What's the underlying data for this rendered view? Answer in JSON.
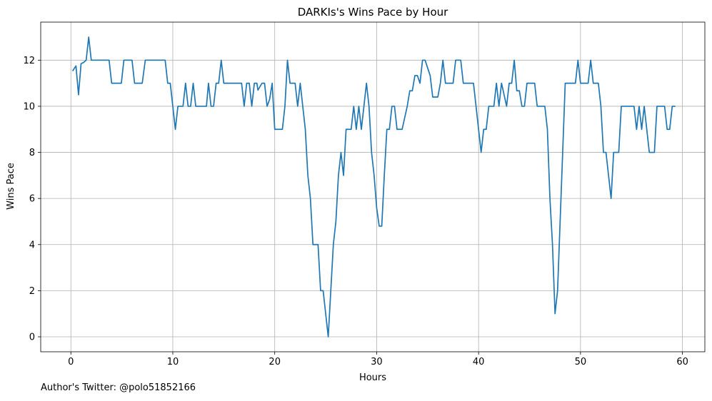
{
  "chart_data": {
    "type": "line",
    "title": "DARKIs's Wins Pace by Hour",
    "xlabel": "Hours",
    "ylabel": "Wins Pace",
    "xlim": [
      -2.96,
      62.2
    ],
    "ylim": [
      -0.65,
      13.65
    ],
    "xticks": [
      0,
      10,
      20,
      30,
      40,
      50,
      60
    ],
    "yticks": [
      0,
      2,
      4,
      6,
      8,
      10,
      12
    ],
    "grid": true,
    "series": [
      {
        "color": "#1f77b4",
        "points": [
          [
            0.2,
            11.55
          ],
          [
            0.5,
            11.75
          ],
          [
            0.75,
            10.5
          ],
          [
            1.0,
            11.85
          ],
          [
            1.25,
            11.9
          ],
          [
            1.5,
            12.0
          ],
          [
            1.75,
            13.0
          ],
          [
            2.0,
            12.0
          ],
          [
            2.5,
            12.0
          ],
          [
            3.0,
            12.0
          ],
          [
            3.5,
            12.0
          ],
          [
            3.75,
            12.0
          ],
          [
            4.0,
            11.0
          ],
          [
            4.5,
            11.0
          ],
          [
            4.95,
            11.0
          ],
          [
            5.2,
            12.0
          ],
          [
            5.75,
            12.0
          ],
          [
            6.0,
            12.0
          ],
          [
            6.25,
            11.0
          ],
          [
            7.0,
            11.0
          ],
          [
            7.3,
            12.0
          ],
          [
            8.0,
            12.0
          ],
          [
            8.5,
            12.0
          ],
          [
            9.25,
            12.0
          ],
          [
            9.5,
            11.0
          ],
          [
            9.75,
            11.0
          ],
          [
            10.25,
            9.0
          ],
          [
            10.5,
            10.0
          ],
          [
            11.0,
            10.0
          ],
          [
            11.25,
            11.0
          ],
          [
            11.5,
            10.0
          ],
          [
            11.75,
            10.0
          ],
          [
            12.0,
            11.0
          ],
          [
            12.25,
            10.0
          ],
          [
            12.75,
            10.0
          ],
          [
            13.0,
            10.0
          ],
          [
            13.3,
            10.0
          ],
          [
            13.5,
            11.0
          ],
          [
            13.75,
            10.0
          ],
          [
            14.0,
            10.0
          ],
          [
            14.25,
            11.0
          ],
          [
            14.5,
            11.0
          ],
          [
            14.75,
            12.0
          ],
          [
            15.0,
            11.0
          ],
          [
            16.0,
            11.0
          ],
          [
            16.75,
            11.0
          ],
          [
            17.0,
            10.0
          ],
          [
            17.25,
            11.0
          ],
          [
            17.5,
            11.0
          ],
          [
            17.75,
            10.0
          ],
          [
            18.0,
            11.0
          ],
          [
            18.25,
            11.0
          ],
          [
            18.35,
            10.7
          ],
          [
            18.75,
            11.0
          ],
          [
            19.0,
            11.0
          ],
          [
            19.25,
            10.0
          ],
          [
            19.5,
            10.3
          ],
          [
            19.75,
            11.0
          ],
          [
            20.0,
            9.0
          ],
          [
            20.25,
            9.0
          ],
          [
            20.75,
            9.0
          ],
          [
            21.0,
            10.0
          ],
          [
            21.25,
            12.0
          ],
          [
            21.5,
            11.0
          ],
          [
            22.0,
            11.0
          ],
          [
            22.25,
            10.0
          ],
          [
            22.5,
            11.0
          ],
          [
            23.0,
            9.0
          ],
          [
            23.25,
            7.0
          ],
          [
            23.5,
            6.0
          ],
          [
            23.75,
            4.0
          ],
          [
            24.0,
            4.0
          ],
          [
            24.25,
            4.0
          ],
          [
            24.5,
            2.0
          ],
          [
            24.75,
            2.0
          ],
          [
            25.25,
            0.0
          ],
          [
            25.5,
            2.0
          ],
          [
            25.75,
            4.0
          ],
          [
            26.0,
            5.0
          ],
          [
            26.25,
            7.0
          ],
          [
            26.5,
            8.0
          ],
          [
            26.75,
            7.0
          ],
          [
            27.0,
            9.0
          ],
          [
            27.5,
            9.0
          ],
          [
            27.75,
            10.0
          ],
          [
            28.0,
            9.0
          ],
          [
            28.25,
            10.0
          ],
          [
            28.5,
            9.0
          ],
          [
            29.0,
            11.0
          ],
          [
            29.25,
            10.0
          ],
          [
            29.5,
            8.0
          ],
          [
            29.75,
            7.0
          ],
          [
            30.0,
            5.6
          ],
          [
            30.25,
            4.8
          ],
          [
            30.5,
            4.8
          ],
          [
            30.75,
            7.0
          ],
          [
            31.0,
            9.0
          ],
          [
            31.25,
            9.0
          ],
          [
            31.5,
            10.0
          ],
          [
            31.75,
            10.0
          ],
          [
            32.0,
            9.0
          ],
          [
            32.5,
            9.0
          ],
          [
            33.0,
            10.0
          ],
          [
            33.25,
            10.67
          ],
          [
            33.5,
            10.67
          ],
          [
            33.75,
            11.33
          ],
          [
            34.0,
            11.33
          ],
          [
            34.25,
            11.0
          ],
          [
            34.5,
            12.0
          ],
          [
            34.75,
            12.0
          ],
          [
            35.25,
            11.33
          ],
          [
            35.5,
            10.4
          ],
          [
            36.0,
            10.4
          ],
          [
            36.25,
            11.0
          ],
          [
            36.5,
            12.0
          ],
          [
            36.75,
            11.0
          ],
          [
            37.5,
            11.0
          ],
          [
            37.75,
            12.0
          ],
          [
            38.25,
            12.0
          ],
          [
            38.5,
            11.0
          ],
          [
            39.5,
            11.0
          ],
          [
            40.0,
            9.0
          ],
          [
            40.25,
            8.0
          ],
          [
            40.5,
            9.0
          ],
          [
            40.75,
            9.0
          ],
          [
            41.0,
            10.0
          ],
          [
            41.5,
            10.0
          ],
          [
            41.75,
            11.0
          ],
          [
            42.0,
            10.0
          ],
          [
            42.25,
            11.0
          ],
          [
            42.5,
            10.5
          ],
          [
            42.75,
            10.0
          ],
          [
            43.0,
            11.0
          ],
          [
            43.25,
            11.0
          ],
          [
            43.5,
            12.0
          ],
          [
            43.75,
            10.67
          ],
          [
            44.0,
            10.67
          ],
          [
            44.25,
            10.0
          ],
          [
            44.5,
            10.0
          ],
          [
            44.75,
            11.0
          ],
          [
            45.5,
            11.0
          ],
          [
            45.75,
            10.0
          ],
          [
            46.5,
            10.0
          ],
          [
            46.75,
            9.0
          ],
          [
            47.0,
            6.0
          ],
          [
            47.25,
            4.0
          ],
          [
            47.5,
            1.0
          ],
          [
            47.75,
            2.0
          ],
          [
            48.0,
            5.0
          ],
          [
            48.25,
            8.0
          ],
          [
            48.5,
            11.0
          ],
          [
            49.5,
            11.0
          ],
          [
            49.75,
            12.0
          ],
          [
            50.0,
            11.0
          ],
          [
            50.75,
            11.0
          ],
          [
            51.0,
            12.0
          ],
          [
            51.25,
            11.0
          ],
          [
            51.75,
            11.0
          ],
          [
            52.0,
            10.0
          ],
          [
            52.25,
            8.0
          ],
          [
            52.5,
            8.0
          ],
          [
            52.75,
            7.0
          ],
          [
            53.0,
            6.0
          ],
          [
            53.25,
            8.0
          ],
          [
            53.75,
            8.0
          ],
          [
            54.0,
            10.0
          ],
          [
            55.0,
            10.0
          ],
          [
            55.25,
            10.0
          ],
          [
            55.5,
            9.0
          ],
          [
            55.75,
            10.0
          ],
          [
            56.0,
            9.0
          ],
          [
            56.25,
            10.0
          ],
          [
            56.5,
            9.0
          ],
          [
            56.75,
            8.0
          ],
          [
            57.25,
            8.0
          ],
          [
            57.5,
            10.0
          ],
          [
            58.25,
            10.0
          ],
          [
            58.5,
            9.0
          ],
          [
            58.75,
            9.0
          ],
          [
            59.0,
            10.0
          ],
          [
            59.25,
            10.0
          ]
        ]
      }
    ]
  },
  "footer": {
    "note": "Author's Twitter: @polo51852166"
  }
}
